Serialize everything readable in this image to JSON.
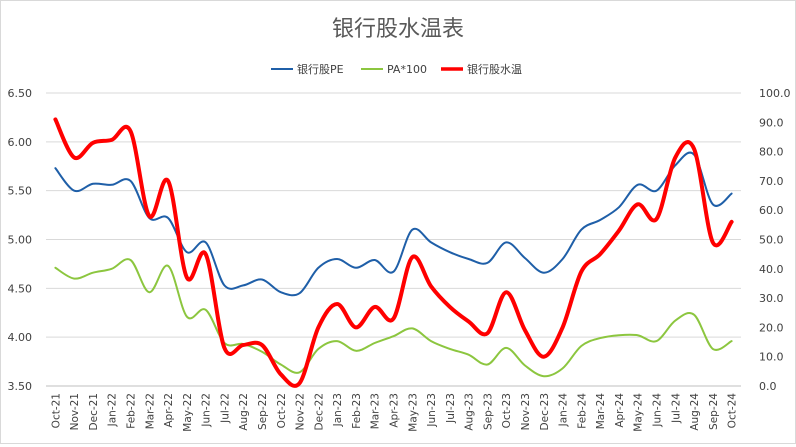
{
  "chart_data": {
    "type": "line",
    "title": "银行股水温表",
    "categories": [
      "Oct-21",
      "Nov-21",
      "Dec-21",
      "Jan-22",
      "Feb-22",
      "Mar-22",
      "Apr-22",
      "May-22",
      "Jun-22",
      "Jul-22",
      "Aug-22",
      "Sep-22",
      "Oct-22",
      "Nov-22",
      "Dec-22",
      "Jan-23",
      "Feb-23",
      "Mar-23",
      "Apr-23",
      "May-23",
      "Jun-23",
      "Jul-23",
      "Aug-23",
      "Sep-23",
      "Oct-23",
      "Nov-23",
      "Dec-23",
      "Jan-24",
      "Feb-24",
      "Mar-24",
      "Apr-24",
      "May-24",
      "Jun-24",
      "Jul-24",
      "Aug-24",
      "Sep-24",
      "Oct-24"
    ],
    "left_axis": {
      "ylim": [
        3.5,
        6.5
      ],
      "ticks": [
        "3.50",
        "4.00",
        "4.50",
        "5.00",
        "5.50",
        "6.00",
        "6.50"
      ]
    },
    "right_axis": {
      "ylim": [
        0,
        100
      ],
      "ticks": [
        "0.0",
        "10.0",
        "20.0",
        "30.0",
        "40.0",
        "50.0",
        "60.0",
        "70.0",
        "80.0",
        "90.0",
        "100.0"
      ]
    },
    "legend_position": "top",
    "grid": true,
    "series": [
      {
        "name": "银行股PE",
        "axis": "left",
        "color": "#1f5fa8",
        "width": 2,
        "values": [
          5.73,
          5.5,
          5.57,
          5.56,
          5.6,
          5.22,
          5.22,
          4.87,
          4.97,
          4.53,
          4.53,
          4.59,
          4.46,
          4.45,
          4.71,
          4.8,
          4.71,
          4.79,
          4.67,
          5.1,
          4.97,
          4.87,
          4.8,
          4.76,
          4.97,
          4.81,
          4.66,
          4.8,
          5.1,
          5.2,
          5.33,
          5.56,
          5.5,
          5.76,
          5.87,
          5.36,
          5.47
        ]
      },
      {
        "name": "PA*100",
        "axis": "left",
        "color": "#8cc63f",
        "width": 2,
        "values": [
          4.71,
          4.6,
          4.66,
          4.7,
          4.79,
          4.46,
          4.73,
          4.21,
          4.28,
          3.94,
          3.93,
          3.85,
          3.72,
          3.64,
          3.88,
          3.96,
          3.86,
          3.94,
          4.01,
          4.09,
          3.96,
          3.88,
          3.82,
          3.72,
          3.89,
          3.71,
          3.6,
          3.68,
          3.91,
          3.99,
          4.02,
          4.02,
          3.96,
          4.17,
          4.23,
          3.88,
          3.96
        ]
      },
      {
        "name": "银行股水温",
        "axis": "right",
        "color": "#ff0000",
        "width": 4,
        "values": [
          91,
          78,
          83,
          84,
          87,
          58,
          70,
          37,
          45,
          13,
          14,
          14,
          4,
          1,
          20,
          28,
          20,
          27,
          23,
          44,
          34,
          27,
          22,
          18,
          32,
          19,
          10,
          20,
          39,
          45,
          53,
          62,
          57,
          78,
          81,
          49,
          56
        ]
      }
    ]
  }
}
